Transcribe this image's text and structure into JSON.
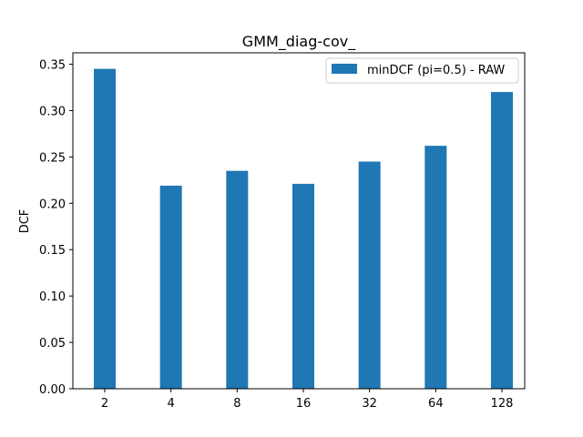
{
  "chart_data": {
    "type": "bar",
    "title": "GMM_diag-cov_",
    "xlabel": "",
    "ylabel": "DCF",
    "categories": [
      "2",
      "4",
      "8",
      "16",
      "32",
      "64",
      "128"
    ],
    "series": [
      {
        "name": "minDCF (pi=0.5) - RAW",
        "values": [
          0.345,
          0.219,
          0.235,
          0.221,
          0.245,
          0.262,
          0.32
        ],
        "color": "#1f77b4"
      }
    ],
    "ylim": [
      0,
      0.35
    ],
    "yticks": [
      "0.00",
      "0.05",
      "0.10",
      "0.15",
      "0.20",
      "0.25",
      "0.30",
      "0.35"
    ],
    "grid": false,
    "legend_position": "top-right"
  }
}
